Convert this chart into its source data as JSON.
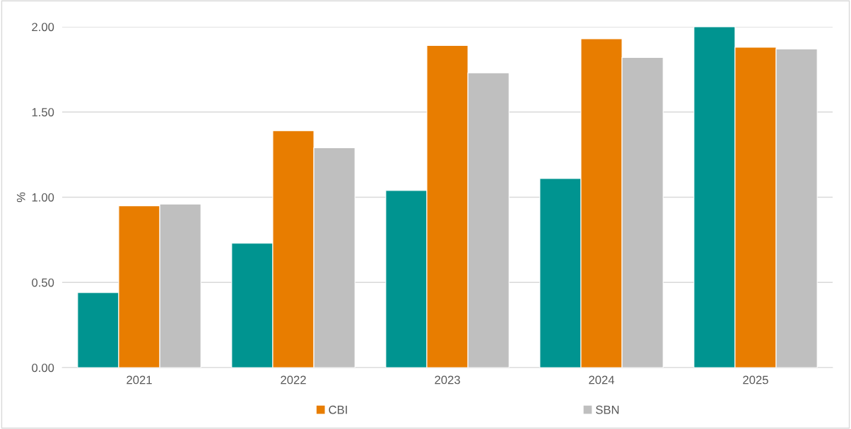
{
  "chart_data": {
    "type": "bar",
    "ylabel": "%",
    "categories": [
      "2021",
      "2022",
      "2023",
      "2024",
      "2025"
    ],
    "series": [
      {
        "color": "#009490",
        "values": [
          0.44,
          0.73,
          1.04,
          1.11,
          2.0
        ]
      },
      {
        "name": "CBI",
        "color": "#e87d00",
        "values": [
          0.95,
          1.39,
          1.89,
          1.93,
          1.88
        ]
      },
      {
        "name": "SBN",
        "color": "#bfbfbf",
        "values": [
          0.96,
          1.29,
          1.73,
          1.82,
          1.87
        ]
      }
    ],
    "ylim": [
      0,
      2.0
    ],
    "yticks": [
      {
        "value": 0,
        "label": "0.00"
      },
      {
        "value": 0.5,
        "label": "0.50"
      },
      {
        "value": 1.0,
        "label": "1.00"
      },
      {
        "value": 1.5,
        "label": "1.50"
      },
      {
        "value": 2.0,
        "label": "2.00"
      }
    ],
    "grid": "y",
    "legend": "bottom"
  }
}
